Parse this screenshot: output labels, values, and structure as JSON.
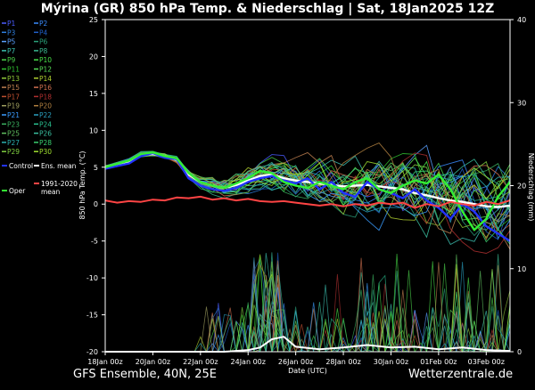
{
  "title": "Mýrina  (GR)  850 hPa Temp. & Niederschlag | Sat, 18Jan2025 12Z",
  "footer": {
    "model": "GFS Ensemble, 40N, 25E",
    "site": "Wetterzentrale.de"
  },
  "chart_data": {
    "type": "line",
    "title": "Mýrina  (GR)  850 hPa Temp. & Niederschlag | Sat, 18Jan2025 12Z",
    "xlabel": "Date (UTC)",
    "ylabel": "850 hPa Temp. (°C)",
    "y2label": "Niederschlag (mm)",
    "xlim": [
      "2025-01-18 00:00",
      "2025-02-04 00:00"
    ],
    "ylim": [
      -20,
      25
    ],
    "y2lim": [
      0,
      40
    ],
    "x_ticks": [
      "18Jan 00z",
      "20Jan 00z",
      "22Jan 00z",
      "24Jan 00z",
      "26Jan 00z",
      "28Jan 00z",
      "30Jan 00z",
      "01Feb 00z",
      "03Feb 00z"
    ],
    "y_ticks": [
      "-20",
      "-15",
      "-10",
      "-5",
      "0",
      "5",
      "10",
      "15",
      "20",
      "25"
    ],
    "y2_ticks": [
      "0",
      "10",
      "20",
      "30",
      "40"
    ],
    "grid": false,
    "legend_position": "left",
    "legend": [
      {
        "name": "P1",
        "color": "#4a5cff"
      },
      {
        "name": "P2",
        "color": "#3a8cff"
      },
      {
        "name": "P3",
        "color": "#2e7fe0"
      },
      {
        "name": "P4",
        "color": "#2060c8"
      },
      {
        "name": "P5",
        "color": "#5aa0ff"
      },
      {
        "name": "P6",
        "color": "#2aa07a"
      },
      {
        "name": "P7",
        "color": "#3cc0b0"
      },
      {
        "name": "P8",
        "color": "#3ab890"
      },
      {
        "name": "P9",
        "color": "#4ad04a"
      },
      {
        "name": "P10",
        "color": "#48e048"
      },
      {
        "name": "P11",
        "color": "#30c030"
      },
      {
        "name": "P12",
        "color": "#58e058"
      },
      {
        "name": "P13",
        "color": "#90c838"
      },
      {
        "name": "P14",
        "color": "#b0d030"
      },
      {
        "name": "P15",
        "color": "#c08050"
      },
      {
        "name": "P16",
        "color": "#d07050"
      },
      {
        "name": "P17",
        "color": "#c05030"
      },
      {
        "name": "P18",
        "color": "#b03030"
      },
      {
        "name": "P19",
        "color": "#a0a060"
      },
      {
        "name": "P20",
        "color": "#b08040"
      },
      {
        "name": "P21",
        "color": "#3a9cff"
      },
      {
        "name": "P22",
        "color": "#2aa0c0"
      },
      {
        "name": "P23",
        "color": "#3ab060"
      },
      {
        "name": "P24",
        "color": "#2ac090"
      },
      {
        "name": "P25",
        "color": "#60c060"
      },
      {
        "name": "P26",
        "color": "#3ac0a0"
      },
      {
        "name": "P27",
        "color": "#2ab0b0"
      },
      {
        "name": "P28",
        "color": "#3ad070"
      },
      {
        "name": "P29",
        "color": "#80d040"
      },
      {
        "name": "P30",
        "color": "#a0e030"
      },
      {
        "name": "Control",
        "color": "#2233ff"
      },
      {
        "name": "Ens. mean",
        "color": "#ffffff"
      },
      {
        "name": "Oper",
        "color": "#33ee33"
      },
      {
        "name": "1991-2020 mean",
        "color": "#ff4444"
      }
    ],
    "series": [
      {
        "name": "Ens. mean",
        "axis": "temp",
        "color": "#ffffff",
        "width": 2.4,
        "x": [
          0,
          1,
          1.5,
          2,
          2.5,
          3,
          3.5,
          4,
          4.5,
          5,
          5.5,
          6,
          6.5,
          7,
          7.5,
          8,
          8.5,
          9,
          9.5,
          10,
          10.5,
          11,
          11.5,
          12,
          12.5,
          13,
          13.5,
          14,
          14.5,
          15,
          15.5,
          16,
          16.5,
          17
        ],
        "y": [
          5,
          5.8,
          6.7,
          6.8,
          6.5,
          6,
          4,
          3,
          2.5,
          2.2,
          2.6,
          3.2,
          3.8,
          4,
          3.5,
          3.2,
          3,
          2.8,
          2.6,
          2.4,
          2.5,
          2.6,
          2.4,
          2.2,
          2,
          1.5,
          1.2,
          0.8,
          0.5,
          0.3,
          0,
          -0.3,
          -0.4,
          -0.2
        ]
      },
      {
        "name": "Control",
        "axis": "temp",
        "color": "#2233ff",
        "width": 2.4,
        "x": [
          0,
          1,
          1.5,
          2,
          2.5,
          3,
          3.5,
          4,
          4.5,
          5,
          5.5,
          6,
          6.5,
          7,
          7.5,
          8,
          8.5,
          9,
          9.5,
          10,
          10.5,
          11,
          11.5,
          12,
          12.5,
          13,
          13.5,
          14,
          14.5,
          15,
          15.5,
          16,
          16.5,
          17
        ],
        "y": [
          4.8,
          5.5,
          6.5,
          6.9,
          6.3,
          6.1,
          3.5,
          2.5,
          2,
          1.8,
          2.2,
          3,
          3.5,
          3.8,
          3.2,
          2.8,
          3.5,
          2,
          3,
          1.5,
          1,
          3,
          2,
          1.5,
          0.8,
          2,
          0.5,
          -0.5,
          -2,
          0,
          -1,
          -3,
          -4,
          -5
        ]
      },
      {
        "name": "Oper",
        "axis": "temp",
        "color": "#33ee33",
        "width": 2.4,
        "x": [
          0,
          1,
          1.5,
          2,
          2.5,
          3,
          3.5,
          4,
          4.5,
          5,
          5.5,
          6,
          6.5,
          7,
          7.5,
          8,
          8.5,
          9,
          9.5,
          10,
          10.5,
          11,
          11.5,
          12,
          12.5,
          13,
          13.5,
          14,
          14.5,
          15,
          15.5,
          16,
          16.5,
          17
        ],
        "y": [
          5,
          5.9,
          6.8,
          7,
          6.5,
          6.2,
          4.2,
          3,
          2.5,
          2.2,
          2.8,
          3.5,
          4.5,
          4.2,
          3,
          2.5,
          2.2,
          3,
          2.5,
          2,
          3,
          3.5,
          2,
          1.5,
          2.5,
          3.2,
          2.8,
          4,
          2,
          -1,
          -3.5,
          -2,
          1,
          3
        ]
      },
      {
        "name": "1991-2020 mean",
        "axis": "temp",
        "color": "#ff4444",
        "width": 2,
        "x": [
          0,
          0.5,
          1,
          1.5,
          2,
          2.5,
          3,
          3.5,
          4,
          4.5,
          5,
          5.5,
          6,
          6.5,
          7,
          7.5,
          8,
          8.5,
          9,
          9.5,
          10,
          10.5,
          11,
          11.5,
          12,
          12.5,
          13,
          13.5,
          14,
          14.5,
          15,
          15.5,
          16,
          16.5,
          17
        ],
        "y": [
          0.5,
          0.2,
          0.4,
          0.3,
          0.6,
          0.5,
          0.9,
          0.8,
          1,
          0.6,
          0.8,
          0.5,
          0.7,
          0.4,
          0.3,
          0.4,
          0.2,
          0,
          -0.2,
          0,
          -0.3,
          0,
          -0.2,
          0.2,
          0,
          0.2,
          -0.5,
          0,
          -0.3,
          0.3,
          0,
          -0.2,
          0.3,
          0,
          0.5
        ]
      },
      {
        "name": "Ens. mean",
        "axis": "precip",
        "color": "#ffffff",
        "width": 2,
        "x": [
          0,
          4,
          5,
          6,
          6.5,
          7,
          7.5,
          8,
          9,
          10,
          11,
          12,
          13,
          14,
          15,
          16,
          17
        ],
        "y": [
          0,
          0,
          0,
          0.2,
          0.5,
          1.5,
          1.8,
          0.6,
          0.3,
          0.5,
          0.8,
          0.5,
          0.6,
          0.3,
          0.5,
          0.2,
          0.1
        ]
      }
    ]
  }
}
